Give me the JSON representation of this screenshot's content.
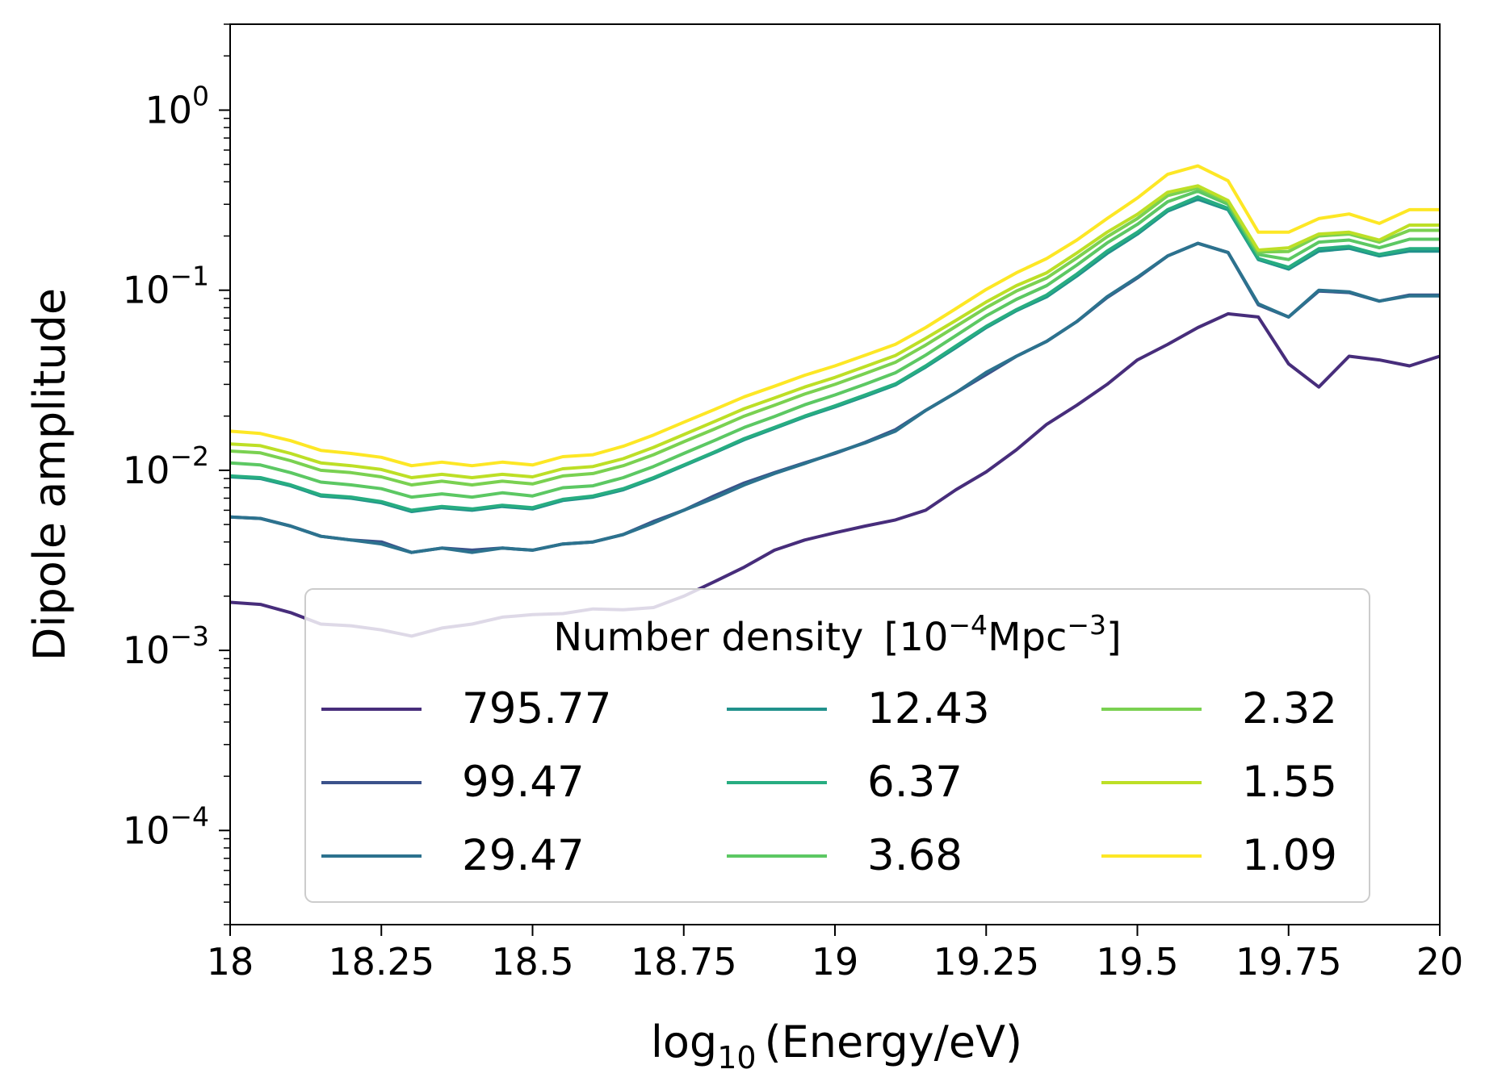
{
  "chart_data": {
    "type": "line",
    "xlabel_main": "log",
    "xlabel_sub": "10",
    "xlabel_rest": "(Energy/eV)",
    "ylabel": "Dipole amplitude",
    "xlim": [
      18,
      20
    ],
    "ylim": [
      3e-05,
      3
    ],
    "yscale": "log",
    "x_ticks": [
      {
        "v": 18,
        "label": "18"
      },
      {
        "v": 18.25,
        "label": "18.25"
      },
      {
        "v": 18.5,
        "label": "18.5"
      },
      {
        "v": 18.75,
        "label": "18.75"
      },
      {
        "v": 19,
        "label": "19"
      },
      {
        "v": 19.25,
        "label": "19.25"
      },
      {
        "v": 19.5,
        "label": "19.5"
      },
      {
        "v": 19.75,
        "label": "19.75"
      },
      {
        "v": 20,
        "label": "20"
      }
    ],
    "y_ticks": [
      {
        "v": 1,
        "base": "10",
        "exp": "0"
      },
      {
        "v": 0.1,
        "base": "10",
        "exp": "−1"
      },
      {
        "v": 0.01,
        "base": "10",
        "exp": "−2"
      },
      {
        "v": 0.001,
        "base": "10",
        "exp": "−3"
      },
      {
        "v": 0.0001,
        "base": "10",
        "exp": "−4"
      }
    ],
    "legend": {
      "title_main": "Number density",
      "title_unit": "[10",
      "title_exp1": "−4",
      "title_mid": "Mpc",
      "title_exp2": "−3",
      "title_end": "]",
      "placement": "lower-center",
      "columns": 3
    },
    "x": [
      18.0,
      18.05,
      18.1,
      18.15,
      18.2,
      18.25,
      18.3,
      18.35,
      18.4,
      18.45,
      18.5,
      18.55,
      18.6,
      18.65,
      18.7,
      18.75,
      18.8,
      18.85,
      18.9,
      18.95,
      19.0,
      19.05,
      19.1,
      19.15,
      19.2,
      19.25,
      19.3,
      19.35,
      19.4,
      19.45,
      19.5,
      19.55,
      19.6,
      19.65,
      19.7,
      19.75,
      19.8,
      19.85,
      19.9,
      19.95,
      20.0
    ],
    "series": [
      {
        "name": "795.77",
        "color": "#472d7b",
        "values": [
          0.00185,
          0.0018,
          0.00162,
          0.0014,
          0.00137,
          0.0013,
          0.0012,
          0.00133,
          0.0014,
          0.00153,
          0.00158,
          0.0016,
          0.0017,
          0.00168,
          0.00173,
          0.002,
          0.0024,
          0.0029,
          0.0036,
          0.0041,
          0.0045,
          0.0049,
          0.0053,
          0.006,
          0.0078,
          0.0098,
          0.013,
          0.018,
          0.023,
          0.03,
          0.041,
          0.05,
          0.062,
          0.074,
          0.071,
          0.039,
          0.029,
          0.043,
          0.041,
          0.038,
          0.043
        ]
      },
      {
        "name": "99.47",
        "color": "#3b528b",
        "values": [
          0.0055,
          0.0054,
          0.0049,
          0.0043,
          0.0041,
          0.004,
          0.0035,
          0.0037,
          0.0036,
          0.0037,
          0.0036,
          0.0039,
          0.004,
          0.0044,
          0.0052,
          0.006,
          0.0072,
          0.0085,
          0.0097,
          0.011,
          0.0124,
          0.0143,
          0.0168,
          0.0215,
          0.027,
          0.034,
          0.043,
          0.052,
          0.067,
          0.091,
          0.117,
          0.155,
          0.182,
          0.162,
          0.083,
          0.071,
          0.099,
          0.097,
          0.087,
          0.094,
          0.094
        ]
      },
      {
        "name": "29.47",
        "color": "#2c728e",
        "values": [
          0.0055,
          0.0054,
          0.0049,
          0.0043,
          0.0041,
          0.0039,
          0.0035,
          0.0037,
          0.0035,
          0.0037,
          0.0036,
          0.0039,
          0.004,
          0.0044,
          0.0051,
          0.006,
          0.007,
          0.0083,
          0.0096,
          0.0109,
          0.0125,
          0.0142,
          0.0165,
          0.0215,
          0.027,
          0.035,
          0.043,
          0.052,
          0.067,
          0.092,
          0.118,
          0.155,
          0.182,
          0.162,
          0.084,
          0.071,
          0.1,
          0.098,
          0.087,
          0.093,
          0.093
        ]
      },
      {
        "name": "12.43",
        "color": "#21918c",
        "values": [
          0.0092,
          0.009,
          0.0082,
          0.0072,
          0.007,
          0.0066,
          0.0059,
          0.0062,
          0.006,
          0.0063,
          0.0061,
          0.0068,
          0.0071,
          0.0078,
          0.009,
          0.0106,
          0.0125,
          0.0148,
          0.0171,
          0.0198,
          0.0225,
          0.0258,
          0.0298,
          0.0374,
          0.048,
          0.062,
          0.077,
          0.092,
          0.12,
          0.16,
          0.205,
          0.275,
          0.32,
          0.28,
          0.148,
          0.131,
          0.165,
          0.171,
          0.155,
          0.165,
          0.165
        ]
      },
      {
        "name": "6.37",
        "color": "#27ad81",
        "values": [
          0.0093,
          0.0091,
          0.0083,
          0.0073,
          0.0071,
          0.0067,
          0.006,
          0.0063,
          0.0061,
          0.0064,
          0.0062,
          0.0069,
          0.0072,
          0.0079,
          0.0091,
          0.0107,
          0.0126,
          0.015,
          0.0173,
          0.02,
          0.0228,
          0.0262,
          0.0302,
          0.038,
          0.049,
          0.063,
          0.078,
          0.094,
          0.123,
          0.165,
          0.21,
          0.28,
          0.33,
          0.285,
          0.15,
          0.134,
          0.17,
          0.175,
          0.158,
          0.17,
          0.17
        ]
      },
      {
        "name": "3.68",
        "color": "#5cc863",
        "values": [
          0.011,
          0.0107,
          0.0097,
          0.0086,
          0.0083,
          0.0079,
          0.0071,
          0.0074,
          0.0071,
          0.0075,
          0.0072,
          0.008,
          0.0082,
          0.0091,
          0.0105,
          0.0124,
          0.0146,
          0.0173,
          0.0199,
          0.0231,
          0.0262,
          0.0301,
          0.0348,
          0.0436,
          0.056,
          0.072,
          0.089,
          0.106,
          0.138,
          0.183,
          0.232,
          0.31,
          0.355,
          0.3,
          0.158,
          0.148,
          0.185,
          0.19,
          0.172,
          0.192,
          0.192
        ]
      },
      {
        "name": "2.32",
        "color": "#7ad151",
        "values": [
          0.0128,
          0.0125,
          0.0113,
          0.01,
          0.0097,
          0.0092,
          0.0083,
          0.0087,
          0.0083,
          0.0087,
          0.0084,
          0.0093,
          0.0096,
          0.0106,
          0.0122,
          0.0144,
          0.0169,
          0.02,
          0.023,
          0.0265,
          0.03,
          0.0345,
          0.0398,
          0.0496,
          0.063,
          0.08,
          0.099,
          0.117,
          0.151,
          0.198,
          0.25,
          0.335,
          0.37,
          0.31,
          0.163,
          0.164,
          0.2,
          0.205,
          0.185,
          0.215,
          0.215
        ]
      },
      {
        "name": "1.55",
        "color": "#bddf26",
        "values": [
          0.014,
          0.0137,
          0.0124,
          0.011,
          0.0106,
          0.0101,
          0.0091,
          0.0095,
          0.0091,
          0.0095,
          0.0092,
          0.0102,
          0.0105,
          0.0116,
          0.0134,
          0.0158,
          0.0186,
          0.022,
          0.0252,
          0.029,
          0.0328,
          0.0377,
          0.0434,
          0.054,
          0.068,
          0.086,
          0.106,
          0.125,
          0.161,
          0.21,
          0.264,
          0.35,
          0.38,
          0.315,
          0.167,
          0.172,
          0.205,
          0.21,
          0.19,
          0.23,
          0.23
        ]
      },
      {
        "name": "1.09",
        "color": "#fde725",
        "values": [
          0.0165,
          0.016,
          0.0146,
          0.0129,
          0.0124,
          0.0118,
          0.0106,
          0.0111,
          0.0106,
          0.0111,
          0.0107,
          0.0119,
          0.0122,
          0.0136,
          0.0157,
          0.0185,
          0.0217,
          0.0256,
          0.0293,
          0.0337,
          0.038,
          0.0436,
          0.0501,
          0.062,
          0.079,
          0.101,
          0.125,
          0.15,
          0.19,
          0.25,
          0.325,
          0.44,
          0.49,
          0.405,
          0.21,
          0.21,
          0.25,
          0.265,
          0.235,
          0.28,
          0.28
        ]
      }
    ]
  }
}
